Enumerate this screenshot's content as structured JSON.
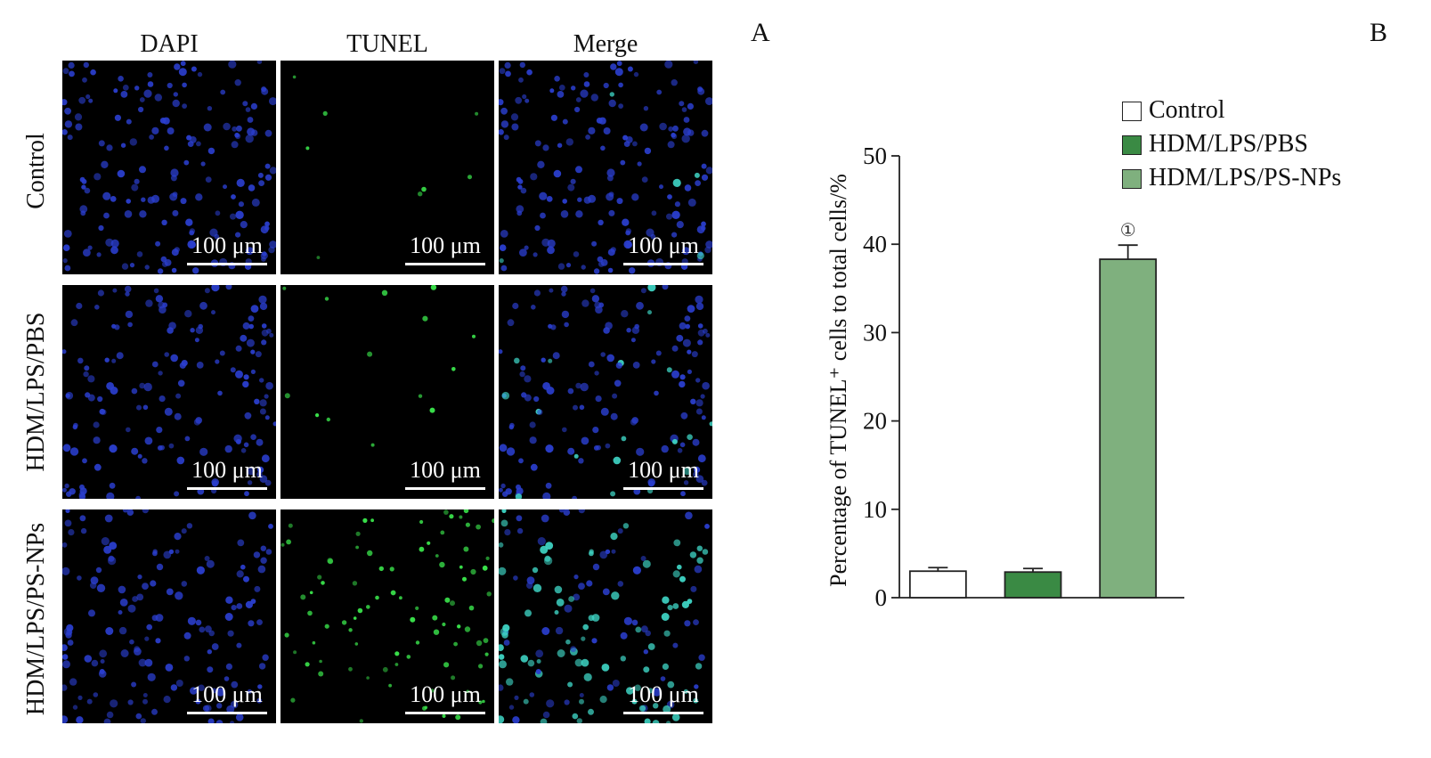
{
  "panels": {
    "a": "A",
    "b": "B"
  },
  "columns": [
    "DAPI",
    "TUNEL",
    "Merge"
  ],
  "rows": [
    "Control",
    "HDM/LPS/PBS",
    "HDM/LPS/PS-NPs"
  ],
  "scale_bar": "100 μm",
  "tunel_signal_level": {
    "Control": 0.05,
    "HDM/LPS/PBS": 0.08,
    "HDM/LPS/PS-NPs": 0.6
  },
  "colors": {
    "nuclei": "#2b3fd0",
    "tunel": "#39e04a",
    "control": "#ffffff",
    "pbs": "#3a8a44",
    "psnps": "#7fb07e"
  },
  "chart_data": {
    "type": "bar",
    "categories": [
      "Control",
      "HDM/LPS/PBS",
      "HDM/LPS/PS-NPs"
    ],
    "values": [
      3.0,
      2.9,
      38.3
    ],
    "errors": [
      0.4,
      0.4,
      1.6
    ],
    "colors": [
      "#ffffff",
      "#3a8a44",
      "#7fb07e"
    ],
    "annotations": [
      "",
      "",
      "①"
    ],
    "xlabel": "",
    "ylabel": "Percentage of TUNEL⁺ cells to total cells/%",
    "ylim": [
      0,
      50
    ],
    "yticks": [
      0,
      10,
      20,
      30,
      40,
      50
    ],
    "legend": [
      "Control",
      "HDM/LPS/PBS",
      "HDM/LPS/PS-NPs"
    ],
    "legend_position": "top-right",
    "grid": false
  }
}
